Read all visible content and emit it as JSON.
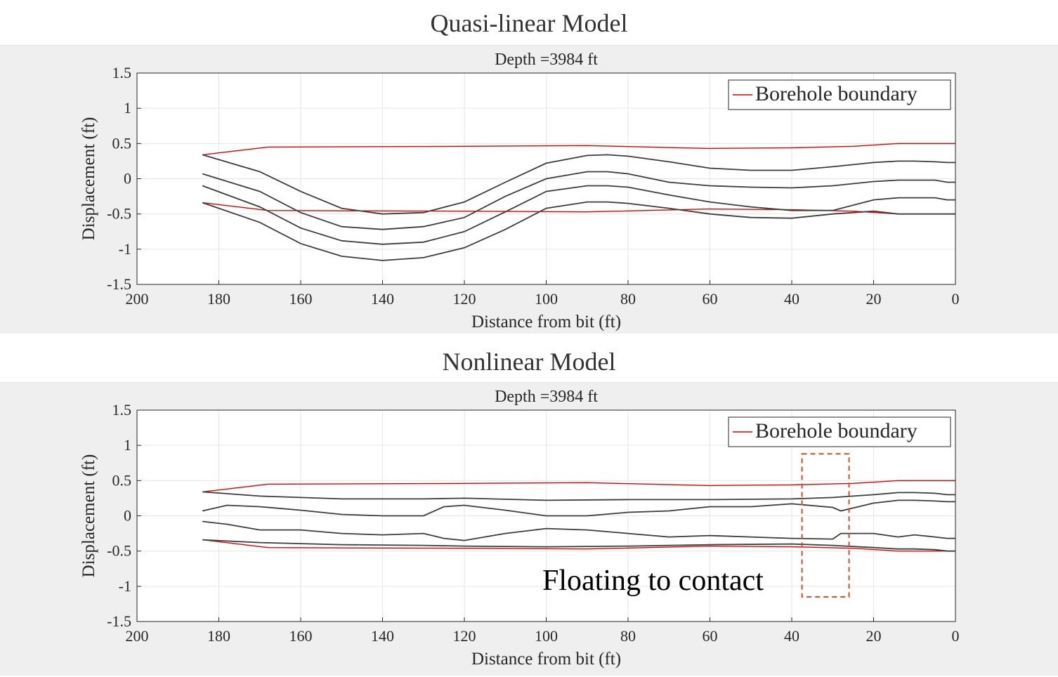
{
  "panels": [
    {
      "panel_title": "Quasi-linear Model",
      "chart_data": {
        "type": "line",
        "title": "Depth =3984 ft",
        "xlabel": "Distance from bit (ft)",
        "ylabel": "Displacement (ft)",
        "xlim": [
          200,
          0
        ],
        "ylim": [
          -1.5,
          1.5
        ],
        "xticks": [
          "200",
          "180",
          "160",
          "140",
          "120",
          "100",
          "80",
          "60",
          "40",
          "20",
          "0"
        ],
        "yticks": [
          "1.5",
          "1",
          "0.5",
          "0",
          "-0.5",
          "-1",
          "-1.5"
        ],
        "grid": true,
        "legend": {
          "position": "top-right",
          "entries": [
            "Borehole boundary"
          ]
        },
        "series": [
          {
            "name": "Borehole boundary",
            "color": "#e00000",
            "role": "boundary-upper",
            "x": [
              184,
              168,
              120,
              90,
              60,
              40,
              25,
              14,
              0
            ],
            "y": [
              0.34,
              0.45,
              0.46,
              0.47,
              0.43,
              0.44,
              0.46,
              0.5,
              0.5
            ]
          },
          {
            "name": "Borehole boundary",
            "color": "#e00000",
            "role": "boundary-lower",
            "x": [
              184,
              168,
              120,
              90,
              60,
              40,
              25,
              14,
              0
            ],
            "y": [
              -0.34,
              -0.45,
              -0.46,
              -0.47,
              -0.43,
              -0.44,
              -0.46,
              -0.5,
              -0.5
            ]
          },
          {
            "color": "#3c3c3c",
            "x": [
              184,
              170,
              160,
              150,
              140,
              130,
              120,
              110,
              100,
              90,
              85,
              80,
              70,
              60,
              50,
              40,
              30,
              20,
              14,
              10,
              5,
              2,
              0
            ],
            "y": [
              0.34,
              0.1,
              -0.18,
              -0.42,
              -0.5,
              -0.48,
              -0.33,
              -0.05,
              0.22,
              0.33,
              0.34,
              0.32,
              0.24,
              0.15,
              0.12,
              0.12,
              0.17,
              0.23,
              0.25,
              0.25,
              0.24,
              0.23,
              0.23
            ]
          },
          {
            "color": "#3c3c3c",
            "x": [
              184,
              170,
              160,
              150,
              140,
              130,
              120,
              110,
              100,
              90,
              85,
              80,
              70,
              60,
              50,
              40,
              30,
              20,
              14,
              10,
              5,
              2,
              0
            ],
            "y": [
              0.07,
              -0.18,
              -0.48,
              -0.68,
              -0.72,
              -0.68,
              -0.55,
              -0.25,
              0.0,
              0.1,
              0.1,
              0.07,
              -0.05,
              -0.1,
              -0.12,
              -0.13,
              -0.1,
              -0.04,
              -0.02,
              -0.02,
              -0.02,
              -0.05,
              -0.05
            ]
          },
          {
            "color": "#3c3c3c",
            "x": [
              184,
              170,
              160,
              150,
              140,
              130,
              120,
              110,
              100,
              90,
              85,
              80,
              70,
              60,
              50,
              40,
              30,
              20,
              14,
              10,
              5,
              2,
              0
            ],
            "y": [
              -0.1,
              -0.4,
              -0.7,
              -0.88,
              -0.93,
              -0.9,
              -0.75,
              -0.47,
              -0.18,
              -0.1,
              -0.1,
              -0.12,
              -0.23,
              -0.33,
              -0.4,
              -0.45,
              -0.45,
              -0.3,
              -0.27,
              -0.27,
              -0.27,
              -0.3,
              -0.3
            ]
          },
          {
            "color": "#3c3c3c",
            "x": [
              184,
              170,
              160,
              150,
              140,
              130,
              120,
              110,
              100,
              90,
              85,
              80,
              70,
              60,
              50,
              40,
              30,
              20,
              14,
              10,
              5,
              2,
              0
            ],
            "y": [
              -0.34,
              -0.62,
              -0.92,
              -1.1,
              -1.16,
              -1.12,
              -0.98,
              -0.72,
              -0.42,
              -0.33,
              -0.33,
              -0.35,
              -0.42,
              -0.5,
              -0.55,
              -0.56,
              -0.5,
              -0.46,
              -0.5,
              -0.5,
              -0.5,
              -0.5,
              -0.5
            ]
          }
        ]
      }
    },
    {
      "panel_title": "Nonlinear Model",
      "annotation": "Floating to contact",
      "chart_data": {
        "type": "line",
        "title": "Depth =3984 ft",
        "xlabel": "Distance from bit (ft)",
        "ylabel": "Displacement (ft)",
        "xlim": [
          200,
          0
        ],
        "ylim": [
          -1.5,
          1.5
        ],
        "xticks": [
          "200",
          "180",
          "160",
          "140",
          "120",
          "100",
          "80",
          "60",
          "40",
          "20",
          "0"
        ],
        "yticks": [
          "1.5",
          "1",
          "0.5",
          "0",
          "-0.5",
          "-1",
          "-1.5"
        ],
        "grid": true,
        "legend": {
          "position": "top-right",
          "entries": [
            "Borehole boundary"
          ]
        },
        "highlight_box": {
          "x": [
            37.5,
            26
          ],
          "y": [
            0.88,
            -1.15
          ]
        },
        "series": [
          {
            "name": "Borehole boundary",
            "color": "#e00000",
            "role": "boundary-upper",
            "x": [
              184,
              168,
              120,
              90,
              60,
              40,
              25,
              14,
              0
            ],
            "y": [
              0.34,
              0.45,
              0.46,
              0.47,
              0.43,
              0.44,
              0.46,
              0.5,
              0.5
            ]
          },
          {
            "name": "Borehole boundary",
            "color": "#e00000",
            "role": "boundary-lower",
            "x": [
              184,
              168,
              120,
              90,
              60,
              40,
              25,
              14,
              0
            ],
            "y": [
              -0.34,
              -0.45,
              -0.46,
              -0.47,
              -0.43,
              -0.44,
              -0.46,
              -0.5,
              -0.5
            ]
          },
          {
            "color": "#3c3c3c",
            "x": [
              184,
              170,
              150,
              130,
              120,
              100,
              80,
              60,
              40,
              30,
              20,
              14,
              10,
              5,
              2,
              0
            ],
            "y": [
              0.34,
              0.28,
              0.24,
              0.24,
              0.25,
              0.22,
              0.23,
              0.23,
              0.24,
              0.26,
              0.3,
              0.33,
              0.33,
              0.32,
              0.3,
              0.3
            ]
          },
          {
            "color": "#3c3c3c",
            "x": [
              184,
              178,
              170,
              160,
              150,
              140,
              130,
              125,
              120,
              110,
              100,
              90,
              80,
              70,
              60,
              50,
              40,
              30,
              28,
              20,
              14,
              10,
              5,
              2,
              0
            ],
            "y": [
              0.07,
              0.15,
              0.13,
              0.08,
              0.02,
              0.0,
              0.0,
              0.13,
              0.15,
              0.08,
              0.0,
              0.0,
              0.05,
              0.07,
              0.13,
              0.13,
              0.17,
              0.12,
              0.07,
              0.18,
              0.22,
              0.22,
              0.21,
              0.2,
              0.2
            ]
          },
          {
            "color": "#3c3c3c",
            "x": [
              184,
              178,
              170,
              160,
              150,
              140,
              130,
              125,
              120,
              110,
              100,
              90,
              80,
              70,
              60,
              50,
              40,
              30,
              28,
              20,
              14,
              10,
              5,
              2,
              0
            ],
            "y": [
              -0.08,
              -0.12,
              -0.2,
              -0.2,
              -0.25,
              -0.27,
              -0.25,
              -0.32,
              -0.35,
              -0.25,
              -0.18,
              -0.2,
              -0.25,
              -0.3,
              -0.28,
              -0.3,
              -0.32,
              -0.33,
              -0.25,
              -0.25,
              -0.3,
              -0.27,
              -0.3,
              -0.32,
              -0.32
            ]
          },
          {
            "color": "#3c3c3c",
            "x": [
              184,
              170,
              150,
              130,
              120,
              100,
              80,
              60,
              40,
              30,
              20,
              14,
              10,
              5,
              2,
              0
            ],
            "y": [
              -0.34,
              -0.38,
              -0.41,
              -0.42,
              -0.43,
              -0.44,
              -0.43,
              -0.41,
              -0.4,
              -0.42,
              -0.45,
              -0.47,
              -0.47,
              -0.48,
              -0.5,
              -0.5
            ]
          }
        ]
      }
    }
  ]
}
